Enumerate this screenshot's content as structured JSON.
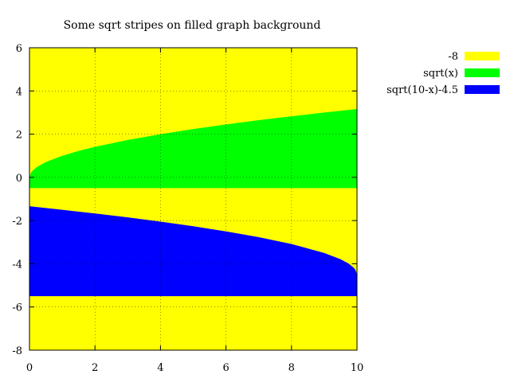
{
  "chart_data": {
    "type": "area",
    "title": "Some sqrt stripes on filled graph background",
    "xlabel": "",
    "ylabel": "",
    "xlim": [
      0,
      10
    ],
    "ylim": [
      -8,
      6
    ],
    "x_ticks": [
      0,
      2,
      4,
      6,
      8,
      10
    ],
    "y_ticks": [
      -8,
      -6,
      -4,
      -2,
      0,
      2,
      4,
      6
    ],
    "grid": true,
    "legend_position": "outside-top-right",
    "background": {
      "label": "-8",
      "color": "#ffff00"
    },
    "series": [
      {
        "name": "sqrt(x)",
        "color": "#00ff00",
        "fill_to": -0.5,
        "x": [
          0,
          0.05,
          0.1,
          0.25,
          0.5,
          1,
          1.5,
          2,
          3,
          4,
          5,
          6,
          7,
          8,
          9,
          10
        ],
        "y": [
          0,
          0.224,
          0.316,
          0.5,
          0.707,
          1,
          1.225,
          1.414,
          1.732,
          2,
          2.236,
          2.449,
          2.646,
          2.828,
          3,
          3.162
        ]
      },
      {
        "name": "sqrt(10-x)-4.5",
        "color": "#0000ff",
        "fill_to": -5.5,
        "x": [
          0,
          1,
          2,
          3,
          4,
          5,
          6,
          7,
          8,
          9,
          9.5,
          9.75,
          9.9,
          9.95,
          10
        ],
        "y": [
          -1.338,
          -1.5,
          -1.672,
          -1.854,
          -2.051,
          -2.264,
          -2.5,
          -2.768,
          -3.086,
          -3.5,
          -3.793,
          -4.0,
          -4.184,
          -4.276,
          -4.5
        ]
      }
    ]
  }
}
